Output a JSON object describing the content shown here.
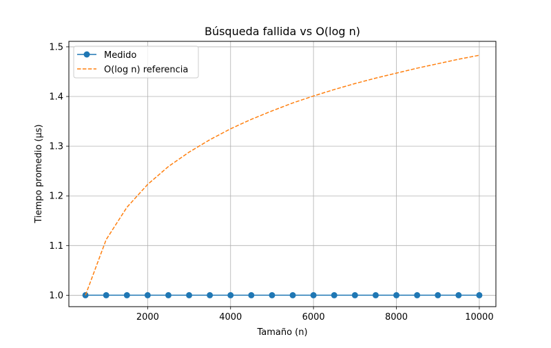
{
  "chart_data": {
    "type": "line",
    "title": "Búsqueda fallida vs O(log n)",
    "xlabel": "Tamaño (n)",
    "ylabel": "Tiempo promedio (µs)",
    "xlim": [
      100,
      10400
    ],
    "ylim": [
      0.977,
      1.511
    ],
    "x_ticks": [
      2000,
      4000,
      6000,
      8000,
      10000
    ],
    "x_tick_labels": [
      "2000",
      "4000",
      "6000",
      "8000",
      "10000"
    ],
    "y_ticks": [
      1.0,
      1.1,
      1.2,
      1.3,
      1.4,
      1.5
    ],
    "y_tick_labels": [
      "1.0",
      "1.1",
      "1.2",
      "1.3",
      "1.4",
      "1.5"
    ],
    "grid": true,
    "legend_position": "top-left",
    "x": [
      500,
      1000,
      1500,
      2000,
      2500,
      3000,
      3500,
      4000,
      4500,
      5000,
      5500,
      6000,
      6500,
      7000,
      7500,
      8000,
      8500,
      9000,
      9500,
      10000
    ],
    "series": [
      {
        "name": "Medido",
        "style": "solid-marker",
        "color": "#1f77b4",
        "values": [
          1.0,
          1.0,
          1.0,
          1.0,
          1.0,
          1.0,
          1.0,
          1.0,
          1.0,
          1.0,
          1.0,
          1.0,
          1.0,
          1.0,
          1.0,
          1.0,
          1.0,
          1.0,
          1.0,
          1.0
        ]
      },
      {
        "name": "O(log n) referencia",
        "style": "dashed",
        "color": "#ff7f0e",
        "values": [
          1.0,
          1.112,
          1.177,
          1.223,
          1.259,
          1.288,
          1.313,
          1.335,
          1.354,
          1.371,
          1.387,
          1.401,
          1.414,
          1.426,
          1.437,
          1.447,
          1.457,
          1.466,
          1.475,
          1.483
        ]
      }
    ]
  }
}
